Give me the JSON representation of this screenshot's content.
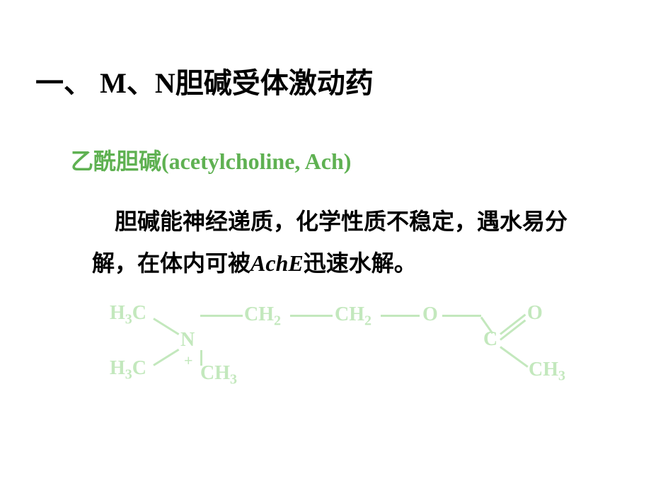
{
  "heading": {
    "prefix": "一、 ",
    "m": "M",
    "sep": "、",
    "n": "N",
    "suffix": "胆碱受体激动药"
  },
  "subtitle": {
    "cn": "乙酰胆碱",
    "latin": "(acetylcholine,  Ach)"
  },
  "body": {
    "part1": "胆碱能神经递质，化学性质不稳定，遇水易分解，在体内可被",
    "ache": "AchE",
    "part2": "迅速水解。"
  },
  "chem": {
    "labels": {
      "h3c_top": "H<sub>3</sub>C",
      "h3c_bottom": "H<sub>3</sub>C",
      "n": "N",
      "plus": "+",
      "ch3_n": "CH<sub>3</sub>",
      "ch2_1": "CH<sub>2</sub>",
      "ch2_2": "CH<sub>2</sub>",
      "o_single": "O",
      "c": "C",
      "o_double": "O",
      "ch3_end": "CH<sub>3</sub>"
    },
    "color": "#c3e8bd",
    "text_color": "#5fb152",
    "body_color": "#000000"
  }
}
